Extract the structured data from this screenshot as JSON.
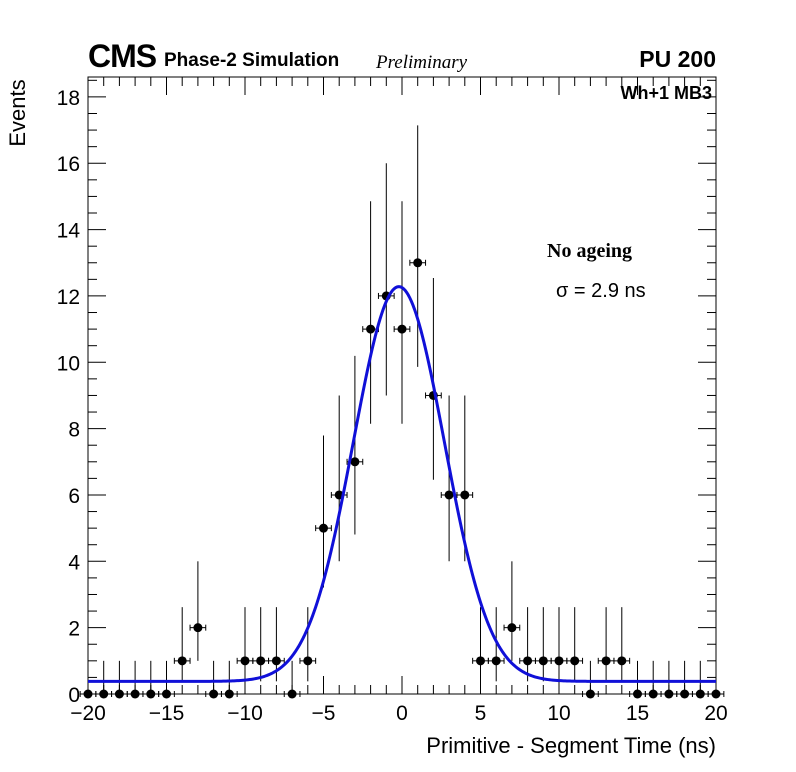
{
  "header": {
    "experiment": "CMS",
    "subtitle": "Phase-2 Simulation",
    "status": "Preliminary",
    "pileup": "PU 200"
  },
  "annotations": {
    "region": "Wh+1 MB3",
    "condition": "No ageing",
    "sigma": "σ = 2.9 ns"
  },
  "colors": {
    "fit": "#1010d8",
    "points": "#000000"
  },
  "chart_data": {
    "type": "scatter",
    "title": "",
    "xlabel": "Primitive - Segment Time (ns)",
    "ylabel": "Events",
    "xlim": [
      -20,
      20
    ],
    "ylim": [
      0,
      18.6
    ],
    "xticks": [
      -20,
      -15,
      -10,
      -5,
      0,
      5,
      10,
      15,
      20
    ],
    "yticks": [
      0,
      2,
      4,
      6,
      8,
      10,
      12,
      14,
      16,
      18
    ],
    "grid": false,
    "series": [
      {
        "name": "Data",
        "marker": "circle",
        "x_error": 0.5,
        "x": [
          -20,
          -19,
          -18,
          -17,
          -16,
          -15,
          -14,
          -13,
          -12,
          -11,
          -10,
          -9,
          -8,
          -7,
          -6,
          -5,
          -4,
          -3,
          -2,
          -1,
          0,
          1,
          2,
          3,
          4,
          5,
          6,
          7,
          8,
          9,
          10,
          11,
          12,
          13,
          14,
          15,
          16,
          17,
          18,
          19,
          20
        ],
        "y": [
          0,
          0,
          0,
          0,
          0,
          0,
          1,
          2,
          0,
          0,
          1,
          1,
          1,
          0,
          1,
          5,
          6,
          7,
          11,
          12,
          11,
          13,
          9,
          6,
          6,
          1,
          1,
          2,
          1,
          1,
          1,
          1,
          0,
          1,
          1,
          0,
          0,
          0,
          0,
          0,
          0
        ]
      },
      {
        "name": "Gaussian fit",
        "type": "line",
        "model": "gaussian_plus_constant",
        "mean": -0.2,
        "sigma": 2.9,
        "amplitude": 11.9,
        "constant": 0.38
      }
    ]
  }
}
